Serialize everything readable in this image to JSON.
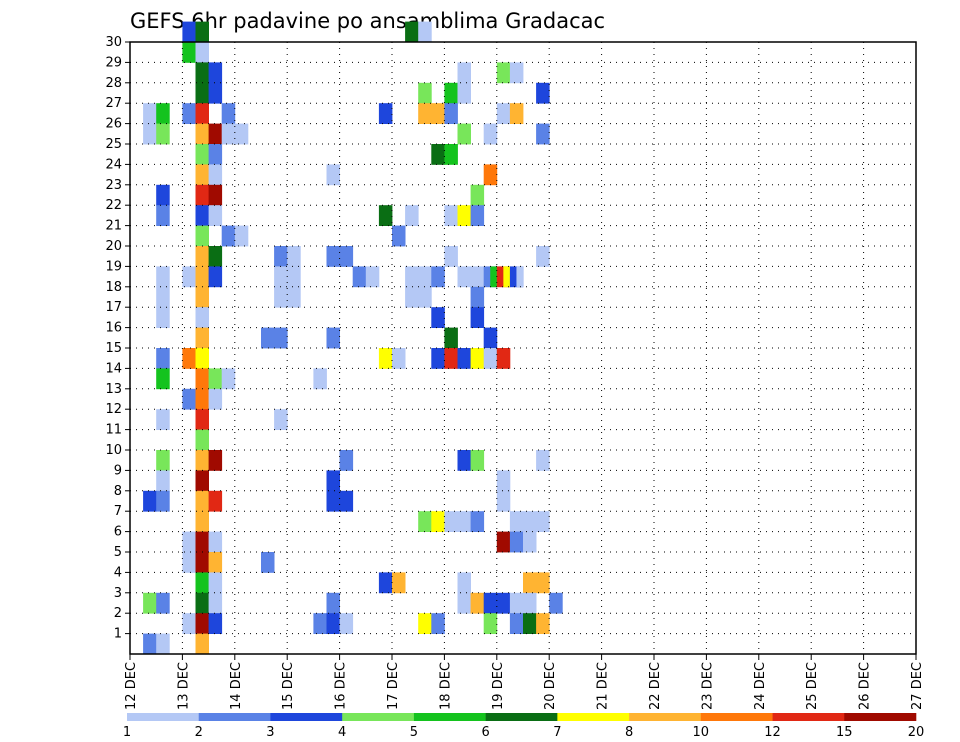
{
  "chart_data": {
    "type": "heatmap",
    "title": "GEFS 6hr padavine po ansamblima Gradacac",
    "xlabel": "",
    "ylabel": "",
    "x_ticks": [
      "12 DEC",
      "13 DEC",
      "14 DEC",
      "15 DEC",
      "16 DEC",
      "17 DEC",
      "18 DEC",
      "19 DEC",
      "20 DEC",
      "21 DEC",
      "22 DEC",
      "23 DEC",
      "24 DEC",
      "25 DEC",
      "26 DEC",
      "27 DEC"
    ],
    "y_ticks": [
      "1",
      "2",
      "3",
      "4",
      "5",
      "6",
      "7",
      "8",
      "9",
      "10",
      "11",
      "12",
      "13",
      "14",
      "15",
      "16",
      "17",
      "18",
      "19",
      "20",
      "21",
      "22",
      "23",
      "24",
      "25",
      "26",
      "27",
      "28",
      "29",
      "30"
    ],
    "xlim_days": [
      0,
      15
    ],
    "steps_per_day": 4,
    "ylim": [
      0,
      30
    ],
    "grid": true,
    "colorbar": {
      "placement": "bottom",
      "labels": [
        "1",
        "2",
        "3",
        "4",
        "5",
        "6",
        "7",
        "8",
        "10",
        "12",
        "15",
        "20"
      ],
      "colors": [
        "#b4c8f5",
        "#5a82e6",
        "#1e46dc",
        "#78e65a",
        "#14c31e",
        "#0a6e14",
        "#ffff00",
        "#ffb432",
        "#ff780a",
        "#e12814",
        "#a00a00"
      ]
    },
    "cells": [
      [
        4,
        30,
        3
      ],
      [
        5,
        30,
        6
      ],
      [
        21,
        30,
        6
      ],
      [
        22,
        30,
        1
      ],
      [
        4,
        29,
        5
      ],
      [
        5,
        29,
        1
      ],
      [
        5,
        28,
        6
      ],
      [
        6,
        28,
        3
      ],
      [
        25,
        28,
        1
      ],
      [
        28,
        28,
        4
      ],
      [
        29,
        28,
        1
      ],
      [
        5,
        27,
        6
      ],
      [
        6,
        27,
        3
      ],
      [
        22,
        27,
        4
      ],
      [
        24,
        27,
        5
      ],
      [
        25,
        27,
        1
      ],
      [
        31,
        27,
        3
      ],
      [
        1,
        26,
        1
      ],
      [
        2,
        26,
        5
      ],
      [
        4,
        26,
        2
      ],
      [
        5,
        26,
        10
      ],
      [
        7,
        26,
        2
      ],
      [
        19,
        26,
        3
      ],
      [
        22,
        26,
        8
      ],
      [
        23,
        26,
        8
      ],
      [
        24,
        26,
        2
      ],
      [
        28,
        26,
        1
      ],
      [
        29,
        26,
        8
      ],
      [
        1,
        25,
        1
      ],
      [
        2,
        25,
        4
      ],
      [
        5,
        25,
        8
      ],
      [
        6,
        25,
        11
      ],
      [
        7,
        25,
        1
      ],
      [
        8,
        25,
        1
      ],
      [
        25,
        25,
        4
      ],
      [
        27,
        25,
        1
      ],
      [
        31,
        25,
        2
      ],
      [
        5,
        24,
        4
      ],
      [
        6,
        24,
        2
      ],
      [
        23,
        24,
        6
      ],
      [
        24,
        24,
        5
      ],
      [
        5,
        23,
        8
      ],
      [
        6,
        23,
        1
      ],
      [
        15,
        23,
        1
      ],
      [
        27,
        23,
        9
      ],
      [
        2,
        22,
        3
      ],
      [
        5,
        22,
        10
      ],
      [
        6,
        22,
        11
      ],
      [
        26,
        22,
        4
      ],
      [
        2,
        21,
        2
      ],
      [
        5,
        21,
        3
      ],
      [
        6,
        21,
        1
      ],
      [
        19,
        21,
        6
      ],
      [
        21,
        21,
        1
      ],
      [
        24,
        21,
        1
      ],
      [
        25,
        21,
        7
      ],
      [
        26,
        21,
        2
      ],
      [
        5,
        20,
        4
      ],
      [
        7,
        20,
        2
      ],
      [
        8,
        20,
        1
      ],
      [
        20,
        20,
        2
      ],
      [
        5,
        19,
        8
      ],
      [
        6,
        19,
        6
      ],
      [
        11,
        19,
        2
      ],
      [
        12,
        19,
        1
      ],
      [
        15,
        19,
        2
      ],
      [
        16,
        19,
        2
      ],
      [
        24,
        19,
        1
      ],
      [
        31,
        19,
        1
      ],
      [
        2,
        18,
        1
      ],
      [
        4,
        18,
        1
      ],
      [
        5,
        18,
        8
      ],
      [
        6,
        18,
        3
      ],
      [
        11,
        18,
        1
      ],
      [
        12,
        18,
        1
      ],
      [
        17,
        18,
        2
      ],
      [
        18,
        18,
        1
      ],
      [
        21,
        18,
        1
      ],
      [
        22,
        18,
        1
      ],
      [
        23,
        18,
        2
      ],
      [
        25,
        18,
        1
      ],
      [
        26,
        18,
        1
      ],
      [
        27,
        18,
        2
      ],
      [
        27.5,
        18,
        5
      ],
      [
        28,
        18,
        10
      ],
      [
        28.5,
        18,
        7
      ],
      [
        29,
        18,
        3
      ],
      [
        29.5,
        18,
        1
      ],
      [
        2,
        17,
        1
      ],
      [
        5,
        17,
        8
      ],
      [
        11,
        17,
        1
      ],
      [
        12,
        17,
        1
      ],
      [
        21,
        17,
        1
      ],
      [
        22,
        17,
        1
      ],
      [
        26,
        17,
        2
      ],
      [
        2,
        16,
        1
      ],
      [
        5,
        16,
        1
      ],
      [
        23,
        16,
        3
      ],
      [
        26,
        16,
        3
      ],
      [
        5,
        15,
        8
      ],
      [
        10,
        15,
        2
      ],
      [
        11,
        15,
        2
      ],
      [
        15,
        15,
        2
      ],
      [
        24,
        15,
        6
      ],
      [
        27,
        15,
        3
      ],
      [
        2,
        14,
        2
      ],
      [
        4,
        14,
        9
      ],
      [
        5,
        14,
        7
      ],
      [
        19,
        14,
        7
      ],
      [
        20,
        14,
        1
      ],
      [
        23,
        14,
        3
      ],
      [
        24,
        14,
        10
      ],
      [
        25,
        14,
        3
      ],
      [
        26,
        14,
        7
      ],
      [
        27,
        14,
        1
      ],
      [
        28,
        14,
        10
      ],
      [
        2,
        13,
        5
      ],
      [
        5,
        13,
        9
      ],
      [
        6,
        13,
        4
      ],
      [
        7,
        13,
        1
      ],
      [
        14,
        13,
        1
      ],
      [
        4,
        12,
        2
      ],
      [
        5,
        12,
        9
      ],
      [
        6,
        12,
        1
      ],
      [
        2,
        11,
        1
      ],
      [
        5,
        11,
        10
      ],
      [
        11,
        11,
        1
      ],
      [
        5,
        10,
        4
      ],
      [
        2,
        9,
        4
      ],
      [
        5,
        9,
        8
      ],
      [
        6,
        9,
        11
      ],
      [
        16,
        9,
        2
      ],
      [
        25,
        9,
        3
      ],
      [
        26,
        9,
        4
      ],
      [
        31,
        9,
        1
      ],
      [
        2,
        8,
        1
      ],
      [
        5,
        8,
        11
      ],
      [
        15,
        8,
        3
      ],
      [
        28,
        8,
        1
      ],
      [
        1,
        7,
        3
      ],
      [
        2,
        7,
        2
      ],
      [
        5,
        7,
        8
      ],
      [
        6,
        7,
        10
      ],
      [
        15,
        7,
        3
      ],
      [
        16,
        7,
        3
      ],
      [
        28,
        7,
        1
      ],
      [
        5,
        6,
        8
      ],
      [
        22,
        6,
        4
      ],
      [
        23,
        6,
        7
      ],
      [
        24,
        6,
        1
      ],
      [
        25,
        6,
        1
      ],
      [
        26,
        6,
        2
      ],
      [
        29,
        6,
        1
      ],
      [
        30,
        6,
        1
      ],
      [
        31,
        6,
        1
      ],
      [
        4,
        5,
        1
      ],
      [
        5,
        5,
        11
      ],
      [
        6,
        5,
        1
      ],
      [
        28,
        5,
        11
      ],
      [
        29,
        5,
        2
      ],
      [
        30,
        5,
        1
      ],
      [
        4,
        4,
        1
      ],
      [
        5,
        4,
        11
      ],
      [
        6,
        4,
        8
      ],
      [
        10,
        4,
        2
      ],
      [
        5,
        3,
        5
      ],
      [
        6,
        3,
        1
      ],
      [
        19,
        3,
        3
      ],
      [
        20,
        3,
        8
      ],
      [
        25,
        3,
        1
      ],
      [
        30,
        3,
        8
      ],
      [
        31,
        3,
        8
      ],
      [
        1,
        2,
        4
      ],
      [
        2,
        2,
        2
      ],
      [
        5,
        2,
        6
      ],
      [
        6,
        2,
        1
      ],
      [
        15,
        2,
        2
      ],
      [
        25,
        2,
        1
      ],
      [
        26,
        2,
        8
      ],
      [
        27,
        2,
        3
      ],
      [
        28,
        2,
        3
      ],
      [
        29,
        2,
        1
      ],
      [
        30,
        2,
        1
      ],
      [
        32,
        2,
        2
      ],
      [
        4,
        1,
        1
      ],
      [
        5,
        1,
        11
      ],
      [
        6,
        1,
        3
      ],
      [
        14,
        1,
        2
      ],
      [
        15,
        1,
        3
      ],
      [
        16,
        1,
        1
      ],
      [
        22,
        1,
        7
      ],
      [
        23,
        1,
        2
      ],
      [
        27,
        1,
        4
      ],
      [
        29,
        1,
        2
      ],
      [
        30,
        1,
        6
      ],
      [
        31,
        1,
        8
      ],
      [
        1,
        0,
        2
      ],
      [
        2,
        0,
        1
      ],
      [
        5,
        0,
        8
      ]
    ]
  }
}
